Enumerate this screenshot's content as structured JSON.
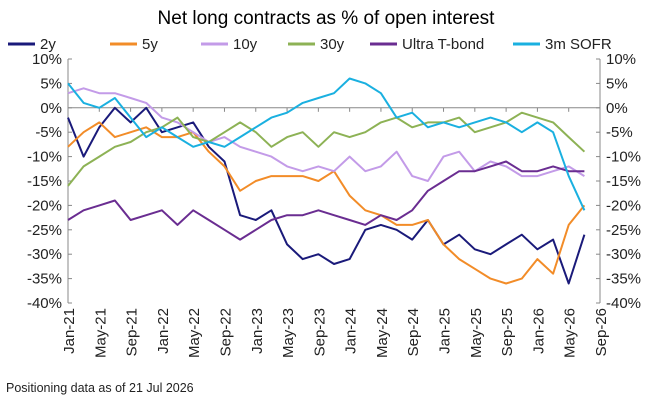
{
  "chart_data": {
    "type": "line",
    "title": "Net long contracts as % of open interest",
    "footnote": "Positioning data as of 21 Jul 2026",
    "x_ticks": [
      "Jan-21",
      "May-21",
      "Sep-21",
      "Jan-22",
      "May-22",
      "Sep-22",
      "Jan-23",
      "May-23",
      "Sep-23",
      "Jan-24",
      "May-24",
      "Sep-24",
      "Jan-25",
      "May-25",
      "Sep-25",
      "Jan-26",
      "May-26",
      "Sep-26"
    ],
    "x_range": [
      "Jan-21",
      "Sep-26"
    ],
    "ylim": [
      -40,
      10
    ],
    "y_ticks": [
      10,
      5,
      0,
      -5,
      -10,
      -15,
      -20,
      -25,
      -30,
      -35,
      -40
    ],
    "y_tick_labels": [
      "10%",
      "5%",
      "0%",
      "-5%",
      "-10%",
      "-15%",
      "-20%",
      "-25%",
      "-30%",
      "-35%",
      "-40%"
    ],
    "grid": false,
    "legend_position": "top",
    "series": [
      {
        "name": "2y",
        "color": "#1a1a7a",
        "points": [
          [
            "Jan-21",
            -2
          ],
          [
            "Mar-21",
            -10
          ],
          [
            "May-21",
            -4
          ],
          [
            "Jul-21",
            0
          ],
          [
            "Sep-21",
            -3
          ],
          [
            "Nov-21",
            0
          ],
          [
            "Jan-22",
            -5
          ],
          [
            "Mar-22",
            -4
          ],
          [
            "May-22",
            -3
          ],
          [
            "Jul-22",
            -8
          ],
          [
            "Sep-22",
            -11
          ],
          [
            "Nov-22",
            -22
          ],
          [
            "Jan-23",
            -23
          ],
          [
            "Mar-23",
            -21
          ],
          [
            "May-23",
            -28
          ],
          [
            "Jul-23",
            -31
          ],
          [
            "Sep-23",
            -30
          ],
          [
            "Nov-23",
            -32
          ],
          [
            "Jan-24",
            -31
          ],
          [
            "Mar-24",
            -25
          ],
          [
            "May-24",
            -24
          ],
          [
            "Jul-24",
            -25
          ],
          [
            "Sep-24",
            -27
          ],
          [
            "Nov-24",
            -23
          ],
          [
            "Jan-25",
            -28
          ],
          [
            "Mar-25",
            -26
          ],
          [
            "May-25",
            -29
          ],
          [
            "Jul-25",
            -30
          ],
          [
            "Sep-25",
            -28
          ],
          [
            "Nov-25",
            -26
          ],
          [
            "Jan-26",
            -29
          ],
          [
            "Mar-26",
            -27
          ],
          [
            "May-26",
            -36
          ],
          [
            "Jul-26",
            -26
          ]
        ]
      },
      {
        "name": "5y",
        "color": "#f28c28",
        "points": [
          [
            "Jan-21",
            -8
          ],
          [
            "Mar-21",
            -5
          ],
          [
            "May-21",
            -3
          ],
          [
            "Jul-21",
            -6
          ],
          [
            "Sep-21",
            -5
          ],
          [
            "Nov-21",
            -4
          ],
          [
            "Jan-22",
            -6
          ],
          [
            "Mar-22",
            -6
          ],
          [
            "May-22",
            -5
          ],
          [
            "Jul-22",
            -9
          ],
          [
            "Sep-22",
            -12
          ],
          [
            "Nov-22",
            -17
          ],
          [
            "Jan-23",
            -15
          ],
          [
            "Mar-23",
            -14
          ],
          [
            "May-23",
            -14
          ],
          [
            "Jul-23",
            -14
          ],
          [
            "Sep-23",
            -15
          ],
          [
            "Nov-23",
            -13
          ],
          [
            "Jan-24",
            -18
          ],
          [
            "Mar-24",
            -21
          ],
          [
            "May-24",
            -22
          ],
          [
            "Jul-24",
            -24
          ],
          [
            "Sep-24",
            -24
          ],
          [
            "Nov-24",
            -23
          ],
          [
            "Jan-25",
            -28
          ],
          [
            "Mar-25",
            -31
          ],
          [
            "May-25",
            -33
          ],
          [
            "Jul-25",
            -35
          ],
          [
            "Sep-25",
            -36
          ],
          [
            "Nov-25",
            -35
          ],
          [
            "Jan-26",
            -31
          ],
          [
            "Mar-26",
            -34
          ],
          [
            "May-26",
            -24
          ],
          [
            "Jul-26",
            -20
          ]
        ]
      },
      {
        "name": "10y",
        "color": "#c39be8",
        "points": [
          [
            "Jan-21",
            3
          ],
          [
            "Mar-21",
            4
          ],
          [
            "May-21",
            3
          ],
          [
            "Jul-21",
            3
          ],
          [
            "Sep-21",
            2
          ],
          [
            "Nov-21",
            1
          ],
          [
            "Jan-22",
            -2
          ],
          [
            "Mar-22",
            -3
          ],
          [
            "May-22",
            -5
          ],
          [
            "Jul-22",
            -7
          ],
          [
            "Sep-22",
            -6
          ],
          [
            "Nov-22",
            -8
          ],
          [
            "Jan-23",
            -9
          ],
          [
            "Mar-23",
            -10
          ],
          [
            "May-23",
            -12
          ],
          [
            "Jul-23",
            -13
          ],
          [
            "Sep-23",
            -12
          ],
          [
            "Nov-23",
            -13
          ],
          [
            "Jan-24",
            -10
          ],
          [
            "Mar-24",
            -13
          ],
          [
            "May-24",
            -12
          ],
          [
            "Jul-24",
            -9
          ],
          [
            "Sep-24",
            -14
          ],
          [
            "Nov-24",
            -15
          ],
          [
            "Jan-25",
            -10
          ],
          [
            "Mar-25",
            -9
          ],
          [
            "May-25",
            -13
          ],
          [
            "Jul-25",
            -11
          ],
          [
            "Sep-25",
            -12
          ],
          [
            "Nov-25",
            -14
          ],
          [
            "Jan-26",
            -14
          ],
          [
            "Mar-26",
            -13
          ],
          [
            "May-26",
            -12
          ],
          [
            "Jul-26",
            -14
          ]
        ]
      },
      {
        "name": "30y",
        "color": "#8db255",
        "points": [
          [
            "Jan-21",
            -16
          ],
          [
            "Mar-21",
            -12
          ],
          [
            "May-21",
            -10
          ],
          [
            "Jul-21",
            -8
          ],
          [
            "Sep-21",
            -7
          ],
          [
            "Nov-21",
            -5
          ],
          [
            "Jan-22",
            -4
          ],
          [
            "Mar-22",
            -2
          ],
          [
            "May-22",
            -6
          ],
          [
            "Jul-22",
            -7
          ],
          [
            "Sep-22",
            -5
          ],
          [
            "Nov-22",
            -3
          ],
          [
            "Jan-23",
            -5
          ],
          [
            "Mar-23",
            -8
          ],
          [
            "May-23",
            -6
          ],
          [
            "Jul-23",
            -5
          ],
          [
            "Sep-23",
            -8
          ],
          [
            "Nov-23",
            -5
          ],
          [
            "Jan-24",
            -6
          ],
          [
            "Mar-24",
            -5
          ],
          [
            "May-24",
            -3
          ],
          [
            "Jul-24",
            -2
          ],
          [
            "Sep-24",
            -4
          ],
          [
            "Nov-24",
            -3
          ],
          [
            "Jan-25",
            -3
          ],
          [
            "Mar-25",
            -2
          ],
          [
            "May-25",
            -5
          ],
          [
            "Jul-25",
            -4
          ],
          [
            "Sep-25",
            -3
          ],
          [
            "Nov-25",
            -1
          ],
          [
            "Jan-26",
            -2
          ],
          [
            "Mar-26",
            -3
          ],
          [
            "May-26",
            -6
          ],
          [
            "Jul-26",
            -9
          ]
        ]
      },
      {
        "name": "Ultra T-bond",
        "color": "#6a2d91",
        "points": [
          [
            "Jan-21",
            -23
          ],
          [
            "Mar-21",
            -21
          ],
          [
            "May-21",
            -20
          ],
          [
            "Jul-21",
            -19
          ],
          [
            "Sep-21",
            -23
          ],
          [
            "Nov-21",
            -22
          ],
          [
            "Jan-22",
            -21
          ],
          [
            "Mar-22",
            -24
          ],
          [
            "May-22",
            -21
          ],
          [
            "Jul-22",
            -23
          ],
          [
            "Sep-22",
            -25
          ],
          [
            "Nov-22",
            -27
          ],
          [
            "Jan-23",
            -25
          ],
          [
            "Mar-23",
            -23
          ],
          [
            "May-23",
            -22
          ],
          [
            "Jul-23",
            -22
          ],
          [
            "Sep-23",
            -21
          ],
          [
            "Nov-23",
            -22
          ],
          [
            "Jan-24",
            -23
          ],
          [
            "Mar-24",
            -24
          ],
          [
            "May-24",
            -22
          ],
          [
            "Jul-24",
            -23
          ],
          [
            "Sep-24",
            -21
          ],
          [
            "Nov-24",
            -17
          ],
          [
            "Jan-25",
            -15
          ],
          [
            "Mar-25",
            -13
          ],
          [
            "May-25",
            -13
          ],
          [
            "Jul-25",
            -12
          ],
          [
            "Sep-25",
            -11
          ],
          [
            "Nov-25",
            -13
          ],
          [
            "Jan-26",
            -13
          ],
          [
            "Mar-26",
            -12
          ],
          [
            "May-26",
            -13
          ],
          [
            "Jul-26",
            -13
          ]
        ]
      },
      {
        "name": "3m SOFR",
        "color": "#1ab0e0",
        "points": [
          [
            "Jan-21",
            5
          ],
          [
            "Mar-21",
            1
          ],
          [
            "May-21",
            0
          ],
          [
            "Jul-21",
            2
          ],
          [
            "Sep-21",
            -2
          ],
          [
            "Nov-21",
            -6
          ],
          [
            "Jan-22",
            -4
          ],
          [
            "Mar-22",
            -6
          ],
          [
            "May-22",
            -8
          ],
          [
            "Jul-22",
            -7
          ],
          [
            "Sep-22",
            -8
          ],
          [
            "Nov-22",
            -6
          ],
          [
            "Jan-23",
            -4
          ],
          [
            "Mar-23",
            -2
          ],
          [
            "May-23",
            -1
          ],
          [
            "Jul-23",
            1
          ],
          [
            "Sep-23",
            2
          ],
          [
            "Nov-23",
            3
          ],
          [
            "Jan-24",
            6
          ],
          [
            "Mar-24",
            5
          ],
          [
            "May-24",
            3
          ],
          [
            "Jul-24",
            -2
          ],
          [
            "Sep-24",
            -1
          ],
          [
            "Nov-24",
            -4
          ],
          [
            "Jan-25",
            -3
          ],
          [
            "Mar-25",
            -4
          ],
          [
            "May-25",
            -3
          ],
          [
            "Jul-25",
            -2
          ],
          [
            "Sep-25",
            -3
          ],
          [
            "Nov-25",
            -5
          ],
          [
            "Jan-26",
            -3
          ],
          [
            "Mar-26",
            -5
          ],
          [
            "May-26",
            -14
          ],
          [
            "Jul-26",
            -21
          ]
        ]
      }
    ]
  }
}
